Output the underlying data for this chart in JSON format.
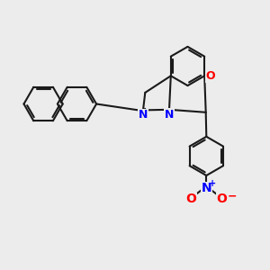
{
  "bg_color": "#ececec",
  "bond_color": "#1a1a1a",
  "N_color": "#0000ff",
  "O_color": "#ff0000",
  "lw": 1.5,
  "dbo": 0.08,
  "figsize": [
    3.0,
    3.0
  ],
  "dpi": 100,
  "xlim": [
    0,
    10
  ],
  "ylim": [
    0,
    10
  ]
}
